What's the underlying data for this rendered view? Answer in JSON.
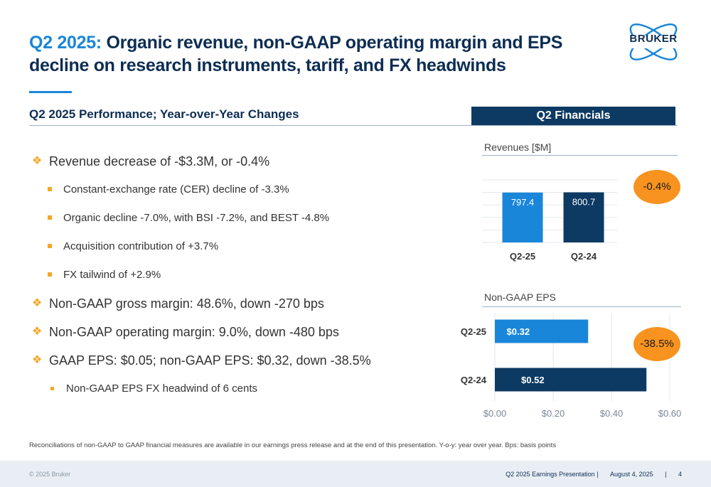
{
  "header": {
    "title_accent": "Q2 2025:",
    "title_rest": " Organic revenue, non-GAAP operating margin and EPS decline on research instruments, tariff, and FX headwinds",
    "logo_text": "BRUKER"
  },
  "section": {
    "subheading": "Q2 2025 Performance; Year-over-Year Changes",
    "financials_label": "Q2 Financials"
  },
  "bullets": [
    {
      "level": 1,
      "text": "Revenue decrease of -$3.3M, or -0.4%"
    },
    {
      "level": 2,
      "text": "Constant-exchange rate (CER) decline of -3.3%"
    },
    {
      "level": 2,
      "text": "Organic decline -7.0%, with BSI -7.2%, and BEST -4.8%"
    },
    {
      "level": 2,
      "text": "Acquisition contribution of +3.7%"
    },
    {
      "level": 2,
      "text": "FX tailwind of +2.9%"
    },
    {
      "level": 1,
      "text": "Non-GAAP gross margin: 48.6%, down -270 bps"
    },
    {
      "level": 1,
      "text": "Non-GAAP operating margin: 9.0%, down -480 bps"
    },
    {
      "level": 1,
      "text": "GAAP EPS: $0.05; non-GAAP EPS: $0.32, down -38.5%"
    },
    {
      "level": 2,
      "text": "Non-GAAP EPS FX headwind of 6 cents"
    }
  ],
  "chart_data": [
    {
      "type": "bar",
      "title": "Revenues [$M]",
      "categories": [
        "Q2-25",
        "Q2-24"
      ],
      "values": [
        797.4,
        800.7
      ],
      "value_labels": [
        "797.4",
        "800.7"
      ],
      "colors": [
        "#1a86d9",
        "#0d3a63"
      ],
      "ylim": [
        0,
        1000
      ],
      "grid": true,
      "change_label": "-0.4%"
    },
    {
      "type": "bar",
      "orientation": "horizontal",
      "title": "Non-GAAP EPS",
      "categories": [
        "Q2-25",
        "Q2-24"
      ],
      "values": [
        0.32,
        0.52
      ],
      "value_labels": [
        "$0.32",
        "$0.52"
      ],
      "colors": [
        "#1a86d9",
        "#0d3a63"
      ],
      "xlim": [
        0,
        0.6
      ],
      "xticks": [
        0,
        0.2,
        0.4,
        0.6
      ],
      "xtick_labels": [
        "$0.00",
        "$0.20",
        "$0.40",
        "$0.60"
      ],
      "grid": true,
      "change_label": "-38.5%"
    }
  ],
  "footer": {
    "footnote": "Reconciliations of non-GAAP to GAAP financial measures are available in our earnings press release and at the end of this presentation. Y-o-y: year over year. Bps: basis points",
    "copyright": "© 2025 Bruker",
    "presentation": "Q2 2025 Earnings Presentation |",
    "date": "August 4, 2025",
    "separator": "|",
    "page": "4"
  },
  "colors": {
    "navy": "#0d2d52",
    "blue": "#1a86d9",
    "dark_bar": "#0d3a63",
    "bullet_orange": "#f5a623",
    "bubble_orange": "#f7931e"
  }
}
